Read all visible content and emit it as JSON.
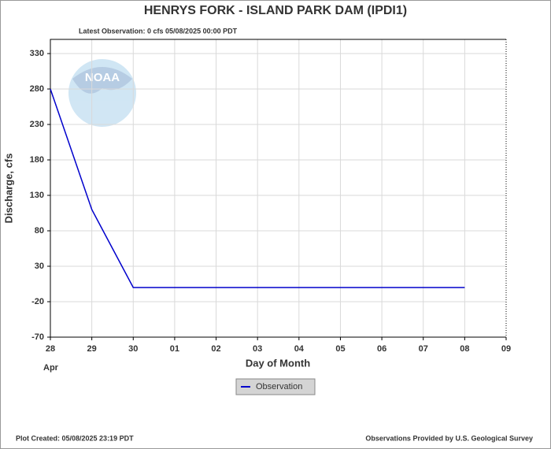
{
  "chart_data": {
    "type": "line",
    "title": "HENRYS FORK - ISLAND PARK DAM  (IPDI1)",
    "subtitle": "Latest Observation: 0 cfs 05/08/2025 00:00 PDT",
    "y_label": "Discharge, cfs",
    "x_label": "Day of Month",
    "month_label": "Apr",
    "logo_text": "NOAA",
    "footer_left": "Plot Created: 05/08/2025 23:19 PDT",
    "footer_right": "Observations Provided by U.S. Geological Survey",
    "x": [
      0,
      1,
      2,
      3,
      4,
      5,
      6,
      7,
      8,
      9,
      10
    ],
    "series": [
      {
        "name": "Observation",
        "color": "#0000cc",
        "values": [
          280,
          110,
          0,
          0,
          0,
          0,
          0,
          0,
          0,
          0,
          0
        ]
      }
    ],
    "xlim": [
      0,
      11
    ],
    "xticks": [
      {
        "value": 0,
        "label": "28"
      },
      {
        "value": 1,
        "label": "29"
      },
      {
        "value": 2,
        "label": "30"
      },
      {
        "value": 3,
        "label": "01"
      },
      {
        "value": 4,
        "label": "02"
      },
      {
        "value": 5,
        "label": "03"
      },
      {
        "value": 6,
        "label": "04"
      },
      {
        "value": 7,
        "label": "05"
      },
      {
        "value": 8,
        "label": "06"
      },
      {
        "value": 9,
        "label": "07"
      },
      {
        "value": 10,
        "label": "08"
      },
      {
        "value": 11,
        "label": "09"
      }
    ],
    "ylim": [
      -70,
      350
    ],
    "yticks": [
      -70,
      -20,
      30,
      80,
      130,
      180,
      230,
      280,
      330
    ],
    "grid": true
  }
}
